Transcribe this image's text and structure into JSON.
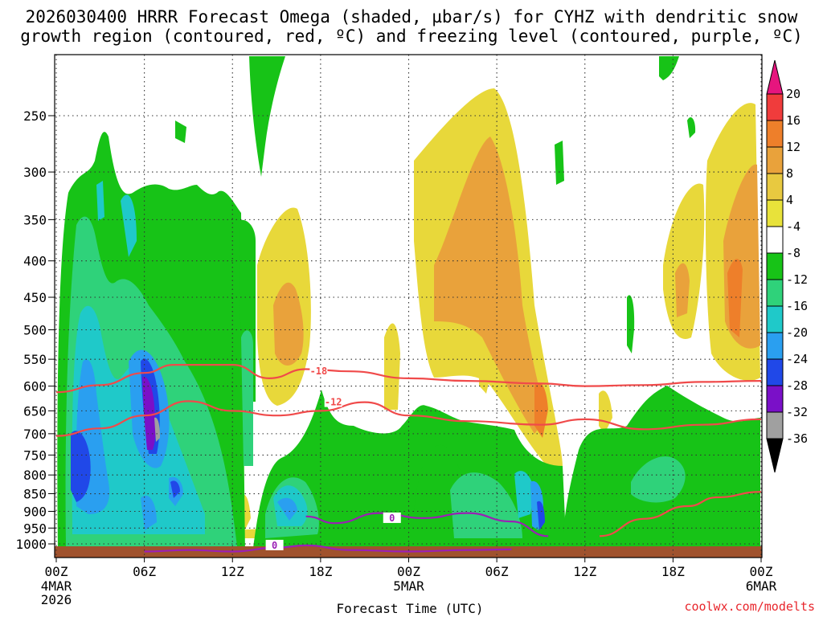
{
  "chart_data": {
    "type": "heatmap",
    "title": "2026030400 HRRR Forecast Omega (shaded, µbar/s) for CYHZ with dendritic snow",
    "subtitle": "growth region (contoured, red, ºC) and freezing level (contoured, purple, ºC)",
    "xlabel": "Forecast Time (UTC)",
    "ylabel": "",
    "x_range_hours": [
      0,
      48
    ],
    "x_ticks": [
      {
        "hour": 0,
        "label": "00Z",
        "sub1": "4MAR",
        "sub2": "2026"
      },
      {
        "hour": 6,
        "label": "06Z",
        "sub1": "",
        "sub2": ""
      },
      {
        "hour": 12,
        "label": "12Z",
        "sub1": "",
        "sub2": ""
      },
      {
        "hour": 18,
        "label": "18Z",
        "sub1": "",
        "sub2": ""
      },
      {
        "hour": 24,
        "label": "00Z",
        "sub1": "5MAR",
        "sub2": ""
      },
      {
        "hour": 30,
        "label": "06Z",
        "sub1": "",
        "sub2": ""
      },
      {
        "hour": 36,
        "label": "12Z",
        "sub1": "",
        "sub2": ""
      },
      {
        "hour": 42,
        "label": "18Z",
        "sub1": "",
        "sub2": ""
      },
      {
        "hour": 48,
        "label": "00Z",
        "sub1": "6MAR",
        "sub2": ""
      }
    ],
    "y_range_hpa": [
      1030,
      200
    ],
    "y_ticks_hpa": [
      "250",
      "300",
      "350",
      "400",
      "450",
      "500",
      "550",
      "600",
      "650",
      "700",
      "750",
      "800",
      "850",
      "900",
      "950",
      "1000"
    ],
    "colorbar": {
      "labels": [
        "20",
        "16",
        "12",
        "8",
        "4",
        "-4",
        "-8",
        "-12",
        "-16",
        "-20",
        "-24",
        "-28",
        "-32",
        "-36"
      ],
      "colors": [
        "#e6157e",
        "#f03c3c",
        "#ee7f2a",
        "#e9a23b",
        "#e8c940",
        "#e8e23a",
        "#ffffff",
        "#17c317",
        "#2fd27a",
        "#1fc9c9",
        "#2a9ff0",
        "#2048e8",
        "#7a10c8",
        "#a0a0a0",
        "#000000"
      ]
    },
    "series": [
      {
        "name": "-18",
        "color": "#f04a4a",
        "label": "-18",
        "x": [
          0,
          3,
          6,
          8,
          12,
          14.5,
          17,
          20,
          24,
          28,
          33,
          36,
          40,
          44,
          48
        ],
        "y": [
          612,
          598,
          575,
          560,
          560,
          585,
          568,
          572,
          585,
          590,
          595,
          600,
          598,
          592,
          590
        ]
      },
      {
        "name": "-12",
        "color": "#f04a4a",
        "label": "-12",
        "x": [
          0,
          3,
          6,
          9,
          12,
          15,
          18,
          21,
          24,
          28,
          33,
          36,
          40,
          44,
          48
        ],
        "y": [
          705,
          688,
          660,
          630,
          650,
          660,
          650,
          632,
          660,
          672,
          680,
          668,
          690,
          680,
          668
        ]
      },
      {
        "name": "0",
        "color": "#9b1fb5",
        "label": "0",
        "x": [
          17,
          19,
          22,
          25,
          28,
          31,
          33.5
        ],
        "y": [
          915,
          935,
          905,
          920,
          905,
          930,
          975
        ]
      },
      {
        "name": "0-low",
        "color": "#9b1fb5",
        "label": "0",
        "x": [
          6,
          9,
          12,
          15,
          17,
          20,
          24,
          28,
          31
        ],
        "y": [
          1025,
          1020,
          1025,
          1012,
          1005,
          1020,
          1025,
          1020,
          1018
        ]
      },
      {
        "name": "warm-layer",
        "color": "#f04a4a",
        "label": "",
        "x": [
          37,
          40,
          43,
          45,
          48
        ],
        "y": [
          975,
          922,
          885,
          860,
          845
        ]
      }
    ],
    "credit": "coolwx.com/modelts"
  }
}
